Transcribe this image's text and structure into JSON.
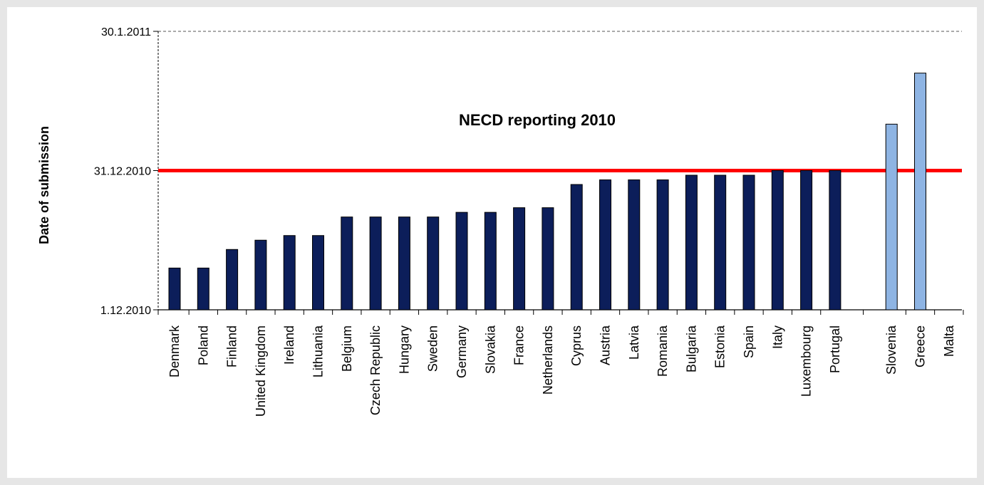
{
  "chart_data": {
    "type": "bar",
    "title": "NECD reporting 2010",
    "ylabel": "Date of submission",
    "xlabel": "",
    "y_ticks": [
      "1.12.2010",
      "31.12.2010",
      "30.1.2011"
    ],
    "ylim": [
      "1.12.2010",
      "30.1.2011"
    ],
    "deadline": "31.12.2010",
    "grid": false,
    "colors": {
      "on_time": "#0c1e5a",
      "late": "#8eb4e3",
      "deadline_line": "#ff0000",
      "bar_edge": "#000000"
    },
    "categories": [
      "Denmark",
      "Poland",
      "Finland",
      "United Kingdom",
      "Ireland",
      "Lithuania",
      "Belgium",
      "Czech Republic",
      "Hungary",
      "Sweden",
      "Germany",
      "Slovakia",
      "France",
      "Netherlands",
      "Cyprus",
      "Austria",
      "Latvia",
      "Romania",
      "Bulgaria",
      "Estonia",
      "Spain",
      "Italy",
      "Luxembourg",
      "Portugal",
      "Slovenia",
      "Greece",
      "Malta"
    ],
    "values": [
      "10.12.2010",
      "10.12.2010",
      "14.12.2010",
      "16.12.2010",
      "17.12.2010",
      "17.12.2010",
      "21.12.2010",
      "21.12.2010",
      "21.12.2010",
      "21.12.2010",
      "22.12.2010",
      "22.12.2010",
      "23.12.2010",
      "23.12.2010",
      "28.12.2010",
      "29.12.2010",
      "29.12.2010",
      "29.12.2010",
      "30.12.2010",
      "30.12.2010",
      "30.12.2010",
      "31.12.2010",
      "31.12.2010",
      "31.12.2010",
      "10.1.2011",
      "21.1.2011",
      null
    ],
    "status": [
      "on_time",
      "on_time",
      "on_time",
      "on_time",
      "on_time",
      "on_time",
      "on_time",
      "on_time",
      "on_time",
      "on_time",
      "on_time",
      "on_time",
      "on_time",
      "on_time",
      "on_time",
      "on_time",
      "on_time",
      "on_time",
      "on_time",
      "on_time",
      "on_time",
      "on_time",
      "on_time",
      "on_time",
      "late",
      "late",
      "late"
    ]
  }
}
